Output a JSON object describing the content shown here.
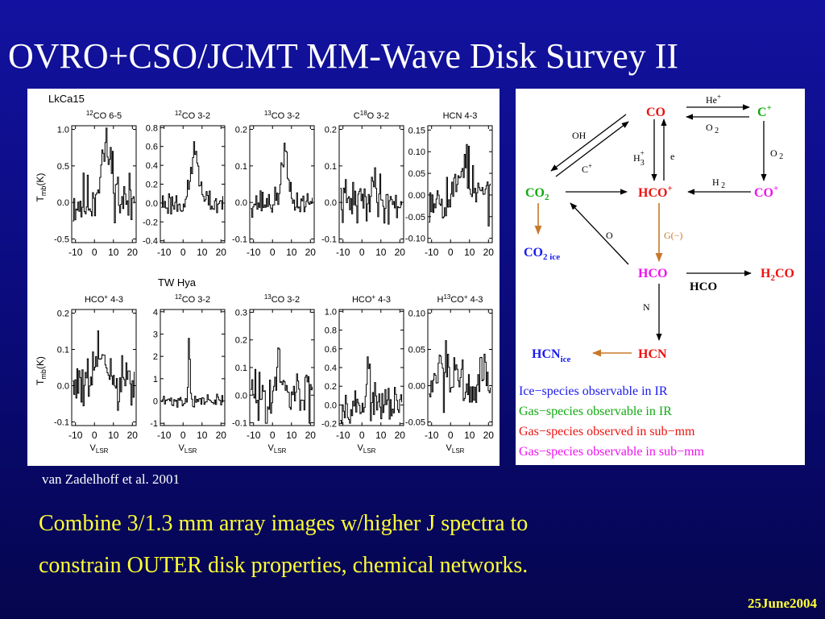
{
  "slide": {
    "title": "OVRO+CSO/JCMT MM-Wave Disk Survey II",
    "citation": "van Zadelhoff et al. 2001",
    "caption_lines": [
      "Combine 3/1.3 mm array images w/higher J spectra to",
      "constrain OUTER disk properties, chemical networks."
    ],
    "date": "25June2004"
  },
  "chart_data": {
    "type": "line",
    "source_labels": [
      "LkCa15",
      "TW Hya"
    ],
    "xticks": [
      "-10",
      "0",
      "10",
      "20"
    ],
    "xlim": [
      -12,
      22
    ],
    "xlabel_main": "V",
    "xlabel_sub": "LSR",
    "ylabel_main": "T",
    "ylabel_sub": "mb",
    "ylabel_unit": "(K)",
    "rows": [
      {
        "source": "LkCa15",
        "panels": [
          {
            "prefix": "12",
            "name": "CO",
            "charge": "",
            "suffix": " 6-5",
            "ylim": [
              -0.55,
              1.05
            ],
            "yticks": [
              "1.0",
              "0.5",
              "0.0",
              "-0.5"
            ],
            "ytick_values": [
              1.0,
              0.5,
              0.0,
              -0.5
            ],
            "noise": 0.2,
            "peak": 0.72,
            "center": 6,
            "width": 3.2,
            "seed": 11
          },
          {
            "prefix": "12",
            "name": "CO",
            "charge": "",
            "suffix": " 3-2",
            "ylim": [
              -0.42,
              0.82
            ],
            "yticks": [
              "0.8",
              "0.6",
              "0.4",
              "0.2",
              "0.0",
              "-0.2",
              "-0.4"
            ],
            "ytick_values": [
              0.8,
              0.6,
              0.4,
              0.2,
              0.0,
              -0.2,
              -0.4
            ],
            "noise": 0.07,
            "peak": 0.55,
            "center": 6,
            "width": 2.0,
            "seed": 23
          },
          {
            "prefix": "13",
            "name": "CO",
            "charge": "",
            "suffix": " 3-2",
            "ylim": [
              -0.11,
              0.21
            ],
            "yticks": [
              "0.2",
              "0.1",
              "0.0",
              "-0.1"
            ],
            "ytick_values": [
              0.2,
              0.1,
              0.0,
              -0.1
            ],
            "noise": 0.018,
            "peak": 0.14,
            "center": 6,
            "width": 1.6,
            "seed": 37
          },
          {
            "prefix": "",
            "name": "C",
            "mid_prefix": "18",
            "mid": "O",
            "charge": "",
            "suffix": " 3-2",
            "ylim": [
              -0.11,
              0.21
            ],
            "yticks": [
              "0.2",
              "0.1",
              "0.0",
              "-0.1"
            ],
            "ytick_values": [
              0.2,
              0.1,
              0.0,
              -0.1
            ],
            "noise": 0.03,
            "peak": 0.05,
            "center": 6,
            "width": 2.0,
            "seed": 41
          },
          {
            "prefix": "",
            "name": "HCN 4-3",
            "charge": "",
            "suffix": "",
            "ylim": [
              -0.11,
              0.16
            ],
            "yticks": [
              "0.15",
              "0.10",
              "0.05",
              "0.00",
              "-0.05",
              "-0.10"
            ],
            "ytick_values": [
              0.15,
              0.1,
              0.05,
              0.0,
              -0.05,
              -0.1
            ],
            "noise": 0.03,
            "peak": 0.09,
            "center": 7,
            "width": 2.2,
            "seed": 53
          }
        ]
      },
      {
        "source": "TW Hya",
        "panels": [
          {
            "prefix": "",
            "name": "HCO",
            "charge": "+",
            "suffix": " 4-3",
            "ylim": [
              -0.11,
              0.21
            ],
            "yticks": [
              "0.2",
              "0.1",
              "0.0",
              "-0.1"
            ],
            "ytick_values": [
              0.2,
              0.1,
              0.0,
              -0.1
            ],
            "noise": 0.04,
            "peak": 0.1,
            "center": 3,
            "width": 2.2,
            "seed": 61
          },
          {
            "prefix": "12",
            "name": "CO",
            "charge": "",
            "suffix": " 3-2",
            "ylim": [
              -1.1,
              4.1
            ],
            "yticks": [
              "4",
              "3",
              "2",
              "1",
              "0",
              "-1"
            ],
            "ytick_values": [
              4,
              3,
              2,
              1,
              0,
              -1
            ],
            "noise": 0.14,
            "peak": 2.9,
            "center": 3,
            "width": 0.45,
            "seed": 71
          },
          {
            "prefix": "13",
            "name": "CO",
            "charge": "",
            "suffix": " 3-2",
            "ylim": [
              -0.11,
              0.31
            ],
            "yticks": [
              "0.3",
              "0.2",
              "0.1",
              "0.0",
              "-0.1"
            ],
            "ytick_values": [
              0.3,
              0.2,
              0.1,
              0.0,
              -0.1
            ],
            "noise": 0.045,
            "peak": 0.2,
            "center": 3,
            "width": 0.55,
            "seed": 83
          },
          {
            "prefix": "",
            "name": "HCO",
            "charge": "+",
            "suffix": " 4-3",
            "ylim": [
              -0.22,
              1.02
            ],
            "yticks": [
              "1.0",
              "0.8",
              "0.6",
              "0.4",
              "0.2",
              "0.0",
              "-0.2"
            ],
            "ytick_values": [
              1.0,
              0.8,
              0.6,
              0.4,
              0.2,
              0.0,
              -0.2
            ],
            "noise": 0.09,
            "peak": 0.5,
            "center": 3,
            "width": 0.7,
            "seed": 97
          },
          {
            "prefix": "",
            "name": "H",
            "mid_prefix": "13",
            "mid": "CO",
            "charge": "+",
            "suffix": " 4-3",
            "ylim": [
              -0.055,
              0.105
            ],
            "yticks": [
              "0.10",
              "0.05",
              "0.00",
              "-0.05"
            ],
            "ytick_values": [
              0.1,
              0.05,
              0.0,
              -0.05
            ],
            "noise": 0.022,
            "peak": 0.04,
            "center": 3,
            "width": 0.7,
            "seed": 103
          }
        ]
      }
    ]
  },
  "network": {
    "nodes": {
      "co": "CO",
      "c_plus": "C",
      "co2": "CO",
      "hco_plus": "HCO",
      "co_plus": "CO",
      "co2_ice": "CO",
      "hco": "HCO",
      "h2co": "H",
      "hcn": "HCN",
      "hcn_ice": "HCN"
    },
    "edges": {
      "he_plus": "He",
      "o2_top": "O",
      "oh": "OH",
      "c_plus": "C",
      "h3_plus": "H",
      "e": "e",
      "o2_right": "O",
      "h2": "H",
      "g_minus": "G(−)",
      "o": "O",
      "hco_product": "HCO",
      "n": "N"
    },
    "legend": [
      {
        "text": "Ice−species observable in IR",
        "color": "#1a1aee"
      },
      {
        "text": "Gas−species observable in IR",
        "color": "#11aa11"
      },
      {
        "text": "Gas−species observed in sub−mm",
        "color": "#ee1111"
      },
      {
        "text": "Gas−species observable in sub−mm",
        "color": "#ee11ee"
      }
    ],
    "colors": {
      "ice": "#1a1aee",
      "gas_ir": "#11aa11",
      "gas_submm_observed": "#ee1111",
      "gas_submm_observable": "#ee11ee",
      "ice_arrow": "#c8782a"
    }
  }
}
